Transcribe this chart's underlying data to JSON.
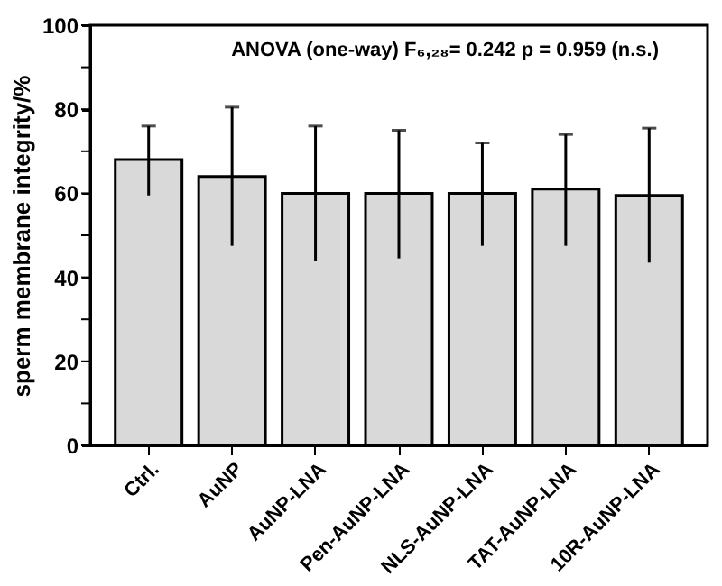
{
  "chart_data": {
    "type": "bar",
    "ylabel": "sperm membrane integrity/%",
    "categories": [
      "Ctrl.",
      "AuNP",
      "AuNP-LNA",
      "Pen-AuNP-LNA",
      "NLS-AuNP-LNA",
      "TAT-AuNP-LNA",
      "10R-AuNP-LNA"
    ],
    "values": [
      68,
      64,
      60,
      60,
      60,
      61,
      59.5
    ],
    "errors": [
      [
        59.5,
        76
      ],
      [
        47.5,
        80.5
      ],
      [
        44,
        76
      ],
      [
        44.5,
        75
      ],
      [
        47.5,
        72
      ],
      [
        47.5,
        74
      ],
      [
        43.5,
        75.5
      ]
    ],
    "color": "#d9d9d9",
    "ylim": [
      0,
      100
    ],
    "yticks": [
      0,
      {
        "value": 10,
        "label": null
      },
      20,
      {
        "value": 30,
        "label": null
      },
      40,
      {
        "value": 50,
        "label": null
      },
      60,
      {
        "value": 70,
        "label": null
      },
      80,
      {
        "value": 90,
        "label": null
      },
      100
    ],
    "annotations": [
      "ANOVA (one-way) F₆,₂₈= 0.242 p = 0.959 (n.s.)"
    ],
    "grid": false
  }
}
